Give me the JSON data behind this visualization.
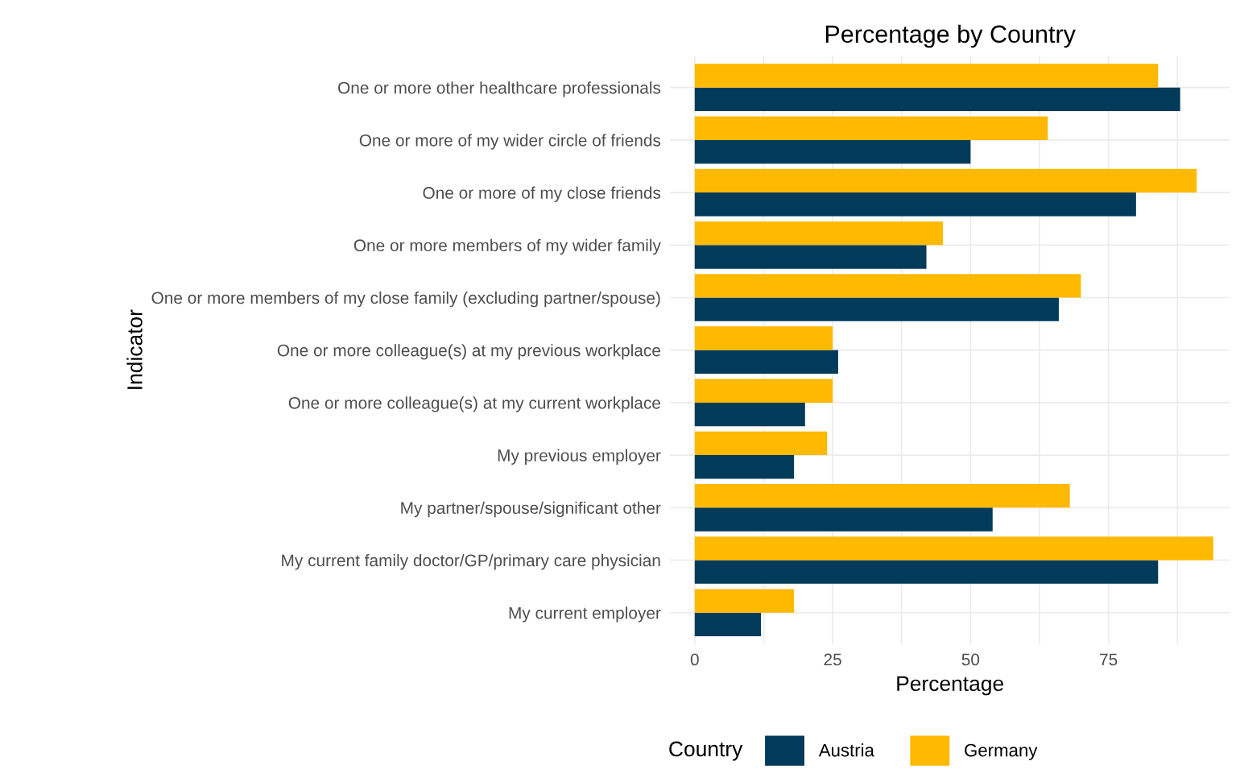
{
  "chart_data": {
    "type": "bar",
    "orientation": "horizontal",
    "title": "Percentage by Country",
    "xlabel": "Percentage",
    "ylabel": "Indicator",
    "legend_title": "Country",
    "categories": [
      "One or more other healthcare professionals",
      "One or more of my wider circle of friends",
      "One or more of my close friends",
      "One or more members of my wider family",
      "One or more members of my close family (excluding partner/spouse)",
      "One or more colleague(s) at my previous workplace",
      "One or more colleague(s) at my current workplace",
      "My previous employer",
      "My partner/spouse/significant other",
      "My current family doctor/GP/primary care physician",
      "My current employer"
    ],
    "series": [
      {
        "name": "Austria",
        "color": "#023a5a",
        "values": [
          88,
          50,
          80,
          42,
          66,
          26,
          20,
          18,
          54,
          84,
          12
        ]
      },
      {
        "name": "Germany",
        "color": "#ffb900",
        "values": [
          84,
          64,
          91,
          45,
          70,
          25,
          25,
          24,
          68,
          94,
          18
        ]
      }
    ],
    "xlim": [
      -4.5,
      97
    ],
    "xticks": [
      0,
      {
        "value": 12.5,
        "label": null
      },
      25,
      {
        "value": 37.5,
        "label": null
      },
      50,
      {
        "value": 62.5,
        "label": null
      },
      75,
      {
        "value": 87.5,
        "label": null
      }
    ],
    "grid": true,
    "legend": "bottom"
  }
}
